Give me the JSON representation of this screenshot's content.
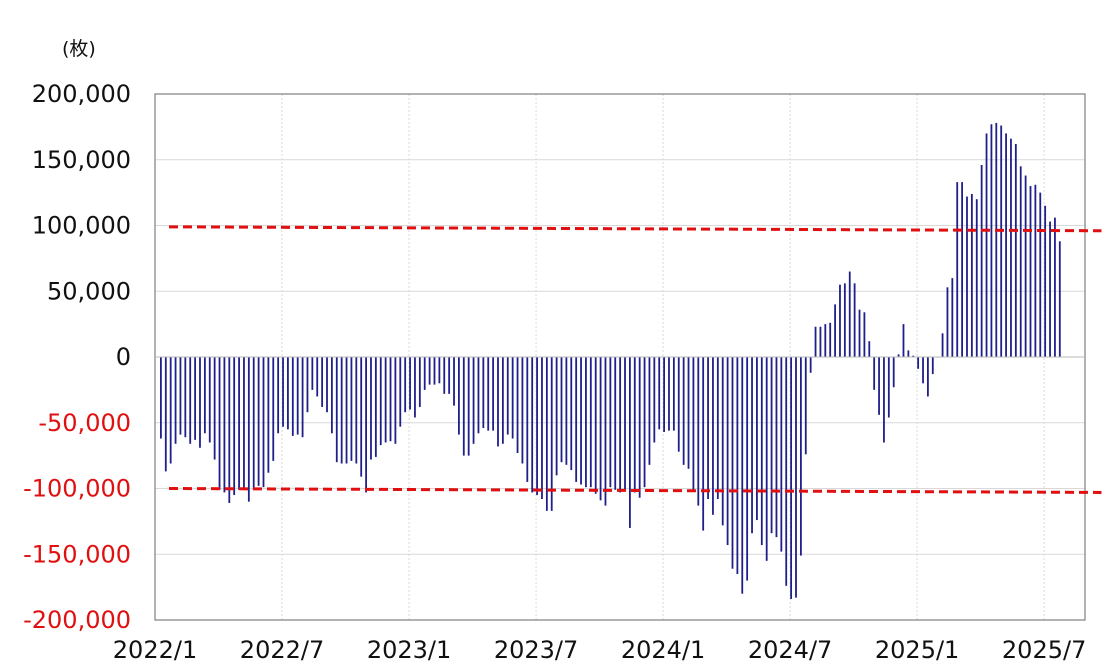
{
  "unit_label": "(枚)",
  "colors": {
    "bar": "#1f1f8a",
    "reference_line": "#e01010",
    "negative_tick": "#e01010",
    "positive_tick": "#111111",
    "grid": "#d9d9d9",
    "axis": "#7f7f7f"
  },
  "chart_data": {
    "type": "bar",
    "title": "",
    "xlabel": "",
    "ylabel": "(枚)",
    "ylim": [
      -200000,
      200000
    ],
    "yticks": [
      200000,
      150000,
      100000,
      50000,
      0,
      -50000,
      -100000,
      -150000,
      -200000
    ],
    "ytick_labels": [
      "200,000",
      "150,000",
      "100,000",
      "50,000",
      "0",
      "-50,000",
      "-100,000",
      "-150,000",
      "-200,000"
    ],
    "xtick_labels": [
      "2022/1",
      "2022/7",
      "2023/1",
      "2023/7",
      "2024/1",
      "2024/7",
      "2025/1",
      "2025/7"
    ],
    "xlim_months": [
      "2022/1",
      "2025/9"
    ],
    "grid": true,
    "series": [
      {
        "frequency": "weekly",
        "start": "2022/1",
        "values": [
          -62000,
          -87000,
          -81000,
          -66000,
          -59000,
          -61000,
          -66000,
          -63000,
          -69000,
          -58000,
          -65000,
          -78000,
          -101000,
          -103000,
          -111000,
          -105000,
          -101000,
          -100000,
          -110000,
          -101000,
          -98000,
          -99000,
          -88000,
          -79000,
          -58000,
          -53000,
          -55000,
          -60000,
          -59000,
          -61000,
          -42000,
          -25000,
          -30000,
          -38000,
          -42000,
          -58000,
          -80000,
          -81000,
          -81000,
          -79000,
          -81000,
          -91000,
          -103000,
          -78000,
          -76000,
          -67000,
          -65000,
          -64000,
          -66000,
          -53000,
          -42000,
          -40000,
          -46000,
          -38000,
          -25000,
          -21000,
          -21000,
          -20000,
          -28000,
          -28000,
          -37000,
          -59000,
          -75000,
          -75000,
          -66000,
          -58000,
          -54000,
          -56000,
          -56000,
          -68000,
          -66000,
          -59000,
          -62000,
          -73000,
          -81000,
          -95000,
          -103000,
          -105000,
          -108000,
          -117000,
          -117000,
          -90000,
          -80000,
          -82000,
          -86000,
          -95000,
          -97000,
          -99000,
          -99000,
          -104000,
          -109000,
          -113000,
          -99000,
          -101000,
          -103000,
          -101000,
          -130000,
          -103000,
          -107000,
          -99000,
          -82000,
          -65000,
          -55000,
          -57000,
          -56000,
          -56000,
          -72000,
          -82000,
          -85000,
          -102000,
          -113000,
          -132000,
          -108000,
          -120000,
          -108000,
          -128000,
          -143000,
          -161000,
          -165000,
          -180000,
          -170000,
          -134000,
          -124000,
          -143000,
          -155000,
          -134000,
          -137000,
          -148000,
          -174000,
          -184000,
          -183000,
          -151000,
          -74000,
          -12000,
          23000,
          23000,
          25000,
          26000,
          40000,
          55000,
          56000,
          65000,
          56000,
          36000,
          34000,
          12000,
          -25000,
          -44000,
          -65000,
          -46000,
          -23000,
          2000,
          25000,
          5000,
          1000,
          -9000,
          -20000,
          -30000,
          -13000,
          0,
          18000,
          53000,
          60000,
          133000,
          133000,
          122000,
          124000,
          120000,
          146000,
          170000,
          177000,
          178000,
          176000,
          170000,
          166000,
          162000,
          145000,
          138000,
          130000,
          131000,
          125000,
          115000,
          103000,
          106000,
          88000
        ]
      }
    ],
    "reference_lines": [
      {
        "from": [
          "2022/1",
          99000
        ],
        "to": [
          "2025/9",
          96000
        ]
      },
      {
        "from": [
          "2022/1",
          -100000
        ],
        "to": [
          "2025/9",
          -103000
        ]
      }
    ]
  }
}
